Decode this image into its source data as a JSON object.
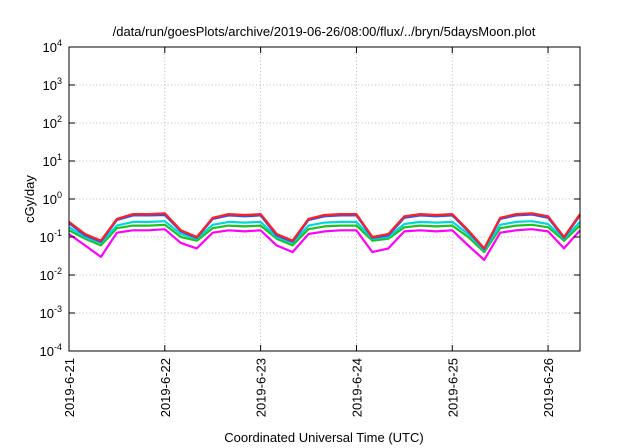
{
  "chart_data": {
    "type": "line",
    "title": "/data/run/goesPlots/archive/2019-06-26/08:00/flux/../bryn/5daysMoon.plot",
    "xlabel": "Coordinated Universal Time (UTC)",
    "ylabel": "cGy/day",
    "yscale": "log",
    "ylim": [
      0.0001,
      10000
    ],
    "y_ticks": [
      {
        "base": "10",
        "exp": "-4",
        "value": 0.0001
      },
      {
        "base": "10",
        "exp": "-3",
        "value": 0.001
      },
      {
        "base": "10",
        "exp": "-2",
        "value": 0.01
      },
      {
        "base": "10",
        "exp": "-1",
        "value": 0.1
      },
      {
        "base": "10",
        "exp": "0",
        "value": 1
      },
      {
        "base": "10",
        "exp": "1",
        "value": 10
      },
      {
        "base": "10",
        "exp": "2",
        "value": 100
      },
      {
        "base": "10",
        "exp": "3",
        "value": 1000
      },
      {
        "base": "10",
        "exp": "4",
        "value": 10000
      }
    ],
    "xlim": [
      "2019-06-21T00:00",
      "2019-06-26T08:00"
    ],
    "x_ticks": [
      "2019-6-21",
      "2019-6-22",
      "2019-6-23",
      "2019-6-24",
      "2019-6-25",
      "2019-6-26"
    ],
    "grid": true,
    "x": [
      "2019-06-21T00:00",
      "2019-06-21T04:00",
      "2019-06-21T08:00",
      "2019-06-21T12:00",
      "2019-06-21T16:00",
      "2019-06-21T20:00",
      "2019-06-22T00:00",
      "2019-06-22T04:00",
      "2019-06-22T08:00",
      "2019-06-22T12:00",
      "2019-06-22T16:00",
      "2019-06-22T20:00",
      "2019-06-23T00:00",
      "2019-06-23T04:00",
      "2019-06-23T08:00",
      "2019-06-23T12:00",
      "2019-06-23T16:00",
      "2019-06-23T20:00",
      "2019-06-24T00:00",
      "2019-06-24T04:00",
      "2019-06-24T08:00",
      "2019-06-24T12:00",
      "2019-06-24T16:00",
      "2019-06-24T20:00",
      "2019-06-25T00:00",
      "2019-06-25T04:00",
      "2019-06-25T08:00",
      "2019-06-25T12:00",
      "2019-06-25T16:00",
      "2019-06-25T20:00",
      "2019-06-26T00:00",
      "2019-06-26T04:00",
      "2019-06-26T08:00"
    ],
    "series": [
      {
        "color": "#ff2020",
        "values": [
          0.25,
          0.12,
          0.08,
          0.3,
          0.4,
          0.4,
          0.42,
          0.15,
          0.1,
          0.32,
          0.4,
          0.38,
          0.4,
          0.12,
          0.08,
          0.3,
          0.38,
          0.4,
          0.4,
          0.1,
          0.12,
          0.35,
          0.4,
          0.38,
          0.4,
          0.15,
          0.05,
          0.32,
          0.4,
          0.42,
          0.35,
          0.1,
          0.4
        ]
      },
      {
        "color": "#3050ff",
        "values": [
          0.23,
          0.11,
          0.075,
          0.28,
          0.37,
          0.37,
          0.38,
          0.14,
          0.095,
          0.3,
          0.37,
          0.35,
          0.37,
          0.11,
          0.075,
          0.28,
          0.35,
          0.37,
          0.37,
          0.095,
          0.11,
          0.32,
          0.37,
          0.35,
          0.37,
          0.14,
          0.048,
          0.3,
          0.37,
          0.39,
          0.32,
          0.095,
          0.37
        ]
      },
      {
        "color": "#00d8d8",
        "values": [
          0.18,
          0.1,
          0.07,
          0.2,
          0.25,
          0.25,
          0.26,
          0.12,
          0.09,
          0.21,
          0.25,
          0.24,
          0.25,
          0.1,
          0.07,
          0.2,
          0.24,
          0.25,
          0.25,
          0.09,
          0.1,
          0.22,
          0.25,
          0.24,
          0.25,
          0.12,
          0.045,
          0.21,
          0.25,
          0.26,
          0.22,
          0.09,
          0.25
        ]
      },
      {
        "color": "#20c020",
        "values": [
          0.15,
          0.09,
          0.06,
          0.17,
          0.2,
          0.2,
          0.21,
          0.1,
          0.08,
          0.17,
          0.2,
          0.19,
          0.2,
          0.09,
          0.06,
          0.16,
          0.19,
          0.2,
          0.2,
          0.08,
          0.09,
          0.18,
          0.2,
          0.19,
          0.2,
          0.1,
          0.04,
          0.17,
          0.2,
          0.21,
          0.18,
          0.08,
          0.2
        ]
      },
      {
        "color": "#ff00ff",
        "values": [
          0.12,
          0.06,
          0.03,
          0.13,
          0.15,
          0.15,
          0.16,
          0.07,
          0.05,
          0.13,
          0.15,
          0.14,
          0.15,
          0.06,
          0.04,
          0.12,
          0.14,
          0.15,
          0.15,
          0.04,
          0.05,
          0.14,
          0.15,
          0.14,
          0.15,
          0.06,
          0.025,
          0.13,
          0.15,
          0.16,
          0.14,
          0.05,
          0.15
        ]
      }
    ]
  }
}
